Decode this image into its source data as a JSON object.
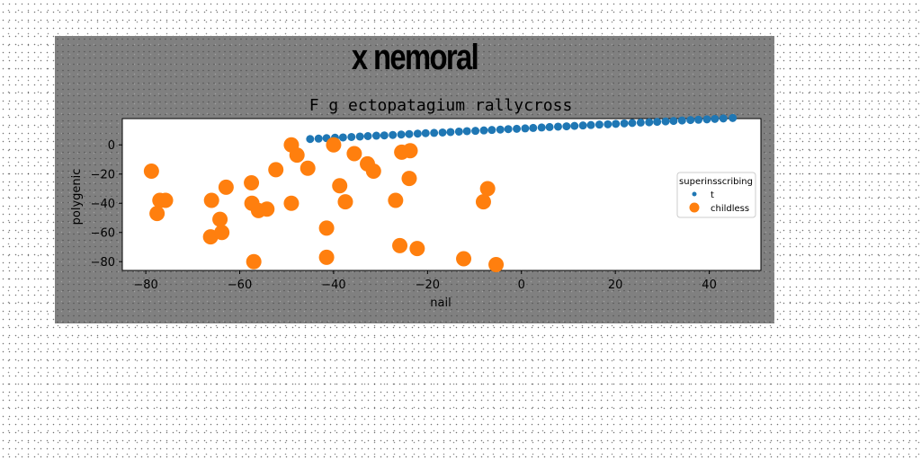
{
  "figure": {
    "suptitle": "x nemoral"
  },
  "chart_data": {
    "type": "scatter",
    "title": "F g ectopatagium rallycross",
    "xlabel": "nail",
    "ylabel": "polygenic",
    "xlim": [
      -85,
      51
    ],
    "ylim": [
      -86,
      18
    ],
    "xticks": [
      -80,
      -60,
      -40,
      -20,
      0,
      20,
      40
    ],
    "yticks": [
      0,
      -20,
      -40,
      -60,
      -80
    ],
    "grid": false,
    "legend": {
      "title": "superinsscribing",
      "position": "right"
    },
    "series": [
      {
        "name": "t",
        "color": "#1f77b4",
        "marker_size": "small",
        "points": [
          [
            -45.0,
            4.0
          ],
          [
            -43.2,
            4.3
          ],
          [
            -41.5,
            4.6
          ],
          [
            -39.7,
            4.9
          ],
          [
            -38.0,
            5.1
          ],
          [
            -36.2,
            5.4
          ],
          [
            -34.4,
            5.7
          ],
          [
            -32.7,
            6.0
          ],
          [
            -30.9,
            6.3
          ],
          [
            -29.2,
            6.5
          ],
          [
            -27.4,
            6.8
          ],
          [
            -25.6,
            7.1
          ],
          [
            -23.9,
            7.4
          ],
          [
            -22.1,
            7.7
          ],
          [
            -20.4,
            8.0
          ],
          [
            -18.6,
            8.2
          ],
          [
            -16.8,
            8.5
          ],
          [
            -15.1,
            8.8
          ],
          [
            -13.3,
            9.1
          ],
          [
            -11.6,
            9.4
          ],
          [
            -9.8,
            9.6
          ],
          [
            -8.0,
            9.9
          ],
          [
            -6.3,
            10.2
          ],
          [
            -4.5,
            10.5
          ],
          [
            -2.8,
            10.8
          ],
          [
            -1.0,
            11.0
          ],
          [
            0.8,
            11.3
          ],
          [
            2.5,
            11.6
          ],
          [
            4.3,
            11.9
          ],
          [
            6.0,
            12.2
          ],
          [
            7.8,
            12.5
          ],
          [
            9.6,
            12.7
          ],
          [
            11.3,
            13.0
          ],
          [
            13.1,
            13.3
          ],
          [
            14.8,
            13.6
          ],
          [
            16.6,
            13.9
          ],
          [
            18.4,
            14.1
          ],
          [
            20.1,
            14.4
          ],
          [
            21.9,
            14.7
          ],
          [
            23.6,
            15.0
          ],
          [
            25.4,
            15.3
          ],
          [
            27.2,
            15.5
          ],
          [
            28.9,
            15.8
          ],
          [
            30.7,
            16.1
          ],
          [
            32.4,
            16.4
          ],
          [
            34.2,
            16.7
          ],
          [
            36.0,
            17.0
          ],
          [
            37.7,
            17.2
          ],
          [
            39.5,
            17.5
          ],
          [
            41.2,
            17.8
          ],
          [
            43.0,
            18.1
          ],
          [
            45.0,
            18.4
          ]
        ]
      },
      {
        "name": "childless",
        "color": "#ff7f0e",
        "marker_size": "large",
        "points": [
          [
            -78.8,
            -18
          ],
          [
            -77.0,
            -38
          ],
          [
            -77.6,
            -47
          ],
          [
            -75.8,
            -38
          ],
          [
            -66.0,
            -38
          ],
          [
            -66.2,
            -63
          ],
          [
            -64.2,
            -51
          ],
          [
            -63.8,
            -60
          ],
          [
            -62.9,
            -29
          ],
          [
            -57.5,
            -26
          ],
          [
            -57.4,
            -40
          ],
          [
            -56.0,
            -45
          ],
          [
            -54.2,
            -44
          ],
          [
            -57.0,
            -80
          ],
          [
            -52.3,
            -17
          ],
          [
            -49.0,
            -40
          ],
          [
            -49.0,
            0
          ],
          [
            -47.8,
            -7
          ],
          [
            -45.5,
            -16
          ],
          [
            -41.5,
            -57
          ],
          [
            -41.5,
            -77
          ],
          [
            -40.0,
            0
          ],
          [
            -38.7,
            -28
          ],
          [
            -37.5,
            -39
          ],
          [
            -35.6,
            -6
          ],
          [
            -32.8,
            -13
          ],
          [
            -31.5,
            -18
          ],
          [
            -26.8,
            -38
          ],
          [
            -25.5,
            -5
          ],
          [
            -23.7,
            -4
          ],
          [
            -25.9,
            -69
          ],
          [
            -23.9,
            -23
          ],
          [
            -22.2,
            -71
          ],
          [
            -12.3,
            -78
          ],
          [
            -8.1,
            -39
          ],
          [
            -7.2,
            -30
          ],
          [
            -5.4,
            -82
          ]
        ]
      }
    ]
  }
}
